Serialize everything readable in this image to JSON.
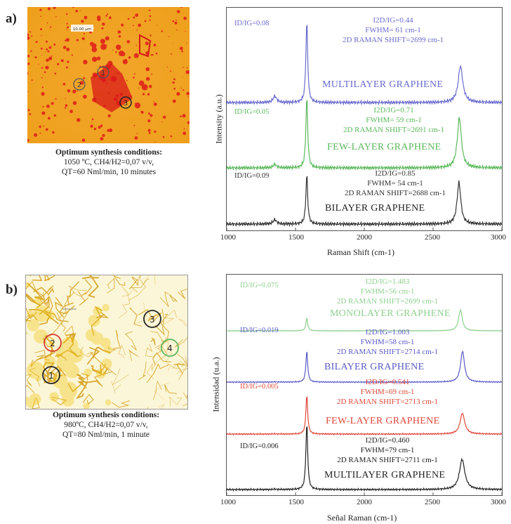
{
  "panels": [
    {
      "label": "a)",
      "caption": {
        "title": "Optimum synthesis conditions:",
        "line1": "1050 ºC, CH4/H2=0,07 v/v,",
        "line2": "QT=60 Nml/min, 10 minutes"
      },
      "image": {
        "scale_bar": "10.00 µm",
        "markers": [
          "1",
          "2",
          "3"
        ]
      },
      "chart": {
        "ylabel": "Intensity (a.u.)",
        "xlabel": "Raman Shift (cm-1)",
        "xticks": [
          "1000",
          "1500",
          "2000",
          "2500",
          "3000"
        ],
        "spectra": [
          {
            "name": "MULTILAYER GRAPHENE",
            "ratio": "ID/IG=0.08",
            "i2d": "I2D/IG=0.44",
            "fwhm": "FWHM= 61 cm-1",
            "shift": "2D RAMAN SHIFT=2699 cm-1",
            "color": "#6a6acf"
          },
          {
            "name": "FEW-LAYER GRAPHENE",
            "ratio": "ID/IG=0.05",
            "i2d": "I2D/IG=0.71",
            "fwhm": "FWHM= 59 cm-1",
            "shift": "2D RAMAN SHIFT=2691 cm-1",
            "color": "#5cb85c"
          },
          {
            "name": "BILAYER GRAPHENE",
            "ratio": "ID/IG=0.09",
            "i2d": "I2D/IG=0.85",
            "fwhm": "FWHM= 54 cm-1",
            "shift": "2D RAMAN SHIFT=2688 cm-1",
            "color": "#333333"
          }
        ]
      }
    },
    {
      "label": "b)",
      "caption": {
        "title": "Optimum synthesis conditions:",
        "line1": "980ºC, CH4/H2=0,07 v/v,",
        "line2": "QT=80 Nml/min, 1 minute"
      },
      "image": {
        "markers": [
          "1",
          "2",
          "3",
          "4"
        ]
      },
      "chart": {
        "ylabel": "Intensidad (u.a.)",
        "xlabel": "Señal Raman (cm-1)",
        "xticks": [
          "1000",
          "1500",
          "2000",
          "2500",
          "3000"
        ],
        "spectra": [
          {
            "name": "MONOLAYER GRAPHENE",
            "ratio": "ID/IG=0.075",
            "i2d": "I2D/IG=1.483",
            "fwhm": "FWHM=56 cm-1",
            "shift": "2D RAMAN SHIFT=2699 cm-1",
            "color": "#8fd08f"
          },
          {
            "name": "BILAYER GRAPHENE",
            "ratio": "ID/IG=0.019",
            "i2d": "I2D/IG=1.003",
            "fwhm": "FWHM=58 cm-1",
            "shift": "2D RAMAN SHIFT=2714 cm-1",
            "color": "#5a5ac8"
          },
          {
            "name": "FEW-LAYER GRAPHENE",
            "ratio": "ID/IG=0.005",
            "i2d": "I2D/IG=0.541",
            "fwhm": "FWHM=69 cm-1",
            "shift": "2D RAMAN SHIFT=2713 cm-1",
            "color": "#e0483a"
          },
          {
            "name": "MULTILAYER GRAPHENE",
            "ratio": "ID/IG=0.006",
            "i2d": "I2D/IG=0.460",
            "fwhm": "FWHM=79 cm-1",
            "shift": "2D RAMAN SHIFT=2711 cm-1",
            "color": "#222222"
          }
        ]
      }
    }
  ]
}
